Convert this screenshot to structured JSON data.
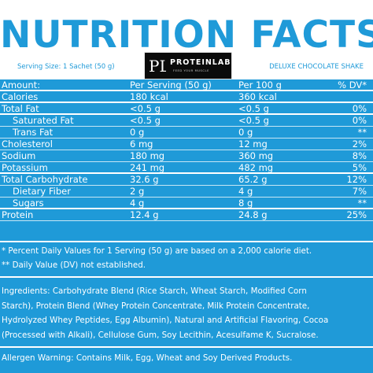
{
  "header": {
    "title": "NUTRITION FACTS",
    "serving_size": "Serving Size: 1 Sachet (50 g)",
    "product_name": "DELUXE CHOCOLATE SHAKE",
    "brand": {
      "mark": "PL",
      "name": "PROTEINLAB",
      "tagline": "FEED YOUR MUSCLE"
    }
  },
  "table": {
    "header": {
      "name": "Amount:",
      "per_serving": "Per Serving (50 g)",
      "per_100g": "Per 100 g",
      "dv": "% DV*"
    },
    "rows": [
      {
        "name": "Calories",
        "per_serving": "180 kcal",
        "per_100g": "360 kcal",
        "dv": ""
      },
      {
        "name": "Total Fat",
        "per_serving": "<0.5 g",
        "per_100g": "<0.5 g",
        "dv": "0%"
      },
      {
        "name": "Saturated Fat",
        "per_serving": "<0.5 g",
        "per_100g": "<0.5 g",
        "dv": "0%"
      },
      {
        "name": "Trans Fat",
        "per_serving": "0 g",
        "per_100g": "0 g",
        "dv": "**"
      },
      {
        "name": "Cholesterol",
        "per_serving": "6 mg",
        "per_100g": "12 mg",
        "dv": "2%"
      },
      {
        "name": "Sodium",
        "per_serving": "180 mg",
        "per_100g": "360 mg",
        "dv": "8%"
      },
      {
        "name": "Potassium",
        "per_serving": "241 mg",
        "per_100g": "482 mg",
        "dv": "5%"
      },
      {
        "name": "Total Carbohydrate",
        "per_serving": "32.6 g",
        "per_100g": "65.2 g",
        "dv": "12%"
      },
      {
        "name": "Dietary Fiber",
        "per_serving": "2 g",
        "per_100g": "4 g",
        "dv": "7%"
      },
      {
        "name": "Sugars",
        "per_serving": "4 g",
        "per_100g": "8 g",
        "dv": "**"
      },
      {
        "name": "Protein",
        "per_serving": "12.4 g",
        "per_100g": "24.8 g",
        "dv": "25%"
      }
    ]
  },
  "footnotes": {
    "dv_note": "* Percent Daily Values for 1 Serving (50 g) are based on a 2,000 calorie diet.",
    "not_established": "** Daily Value (DV) not established."
  },
  "ingredients": {
    "lines": [
      "Ingredients: Carbohydrate Blend (Rice Starch, Wheat Starch, Modified Corn",
      "Starch), Protein Blend (Whey Protein Concentrate, Milk Protein Concentrate,",
      "Hydrolyzed Whey Peptides, Egg Albumin), Natural and Artificial Flavoring, Cocoa",
      "(Processed with Alkali), Cellulose Gum, Soy Lecithin, Acesulfame K, Sucralose."
    ]
  },
  "allergen": "Allergen Warning: Contains Milk, Egg, Wheat and Soy Derived Products.",
  "colors": {
    "background_blue": "#1f9ad8",
    "header_white": "#ffffff",
    "logo_black": "#0b0b0b"
  }
}
